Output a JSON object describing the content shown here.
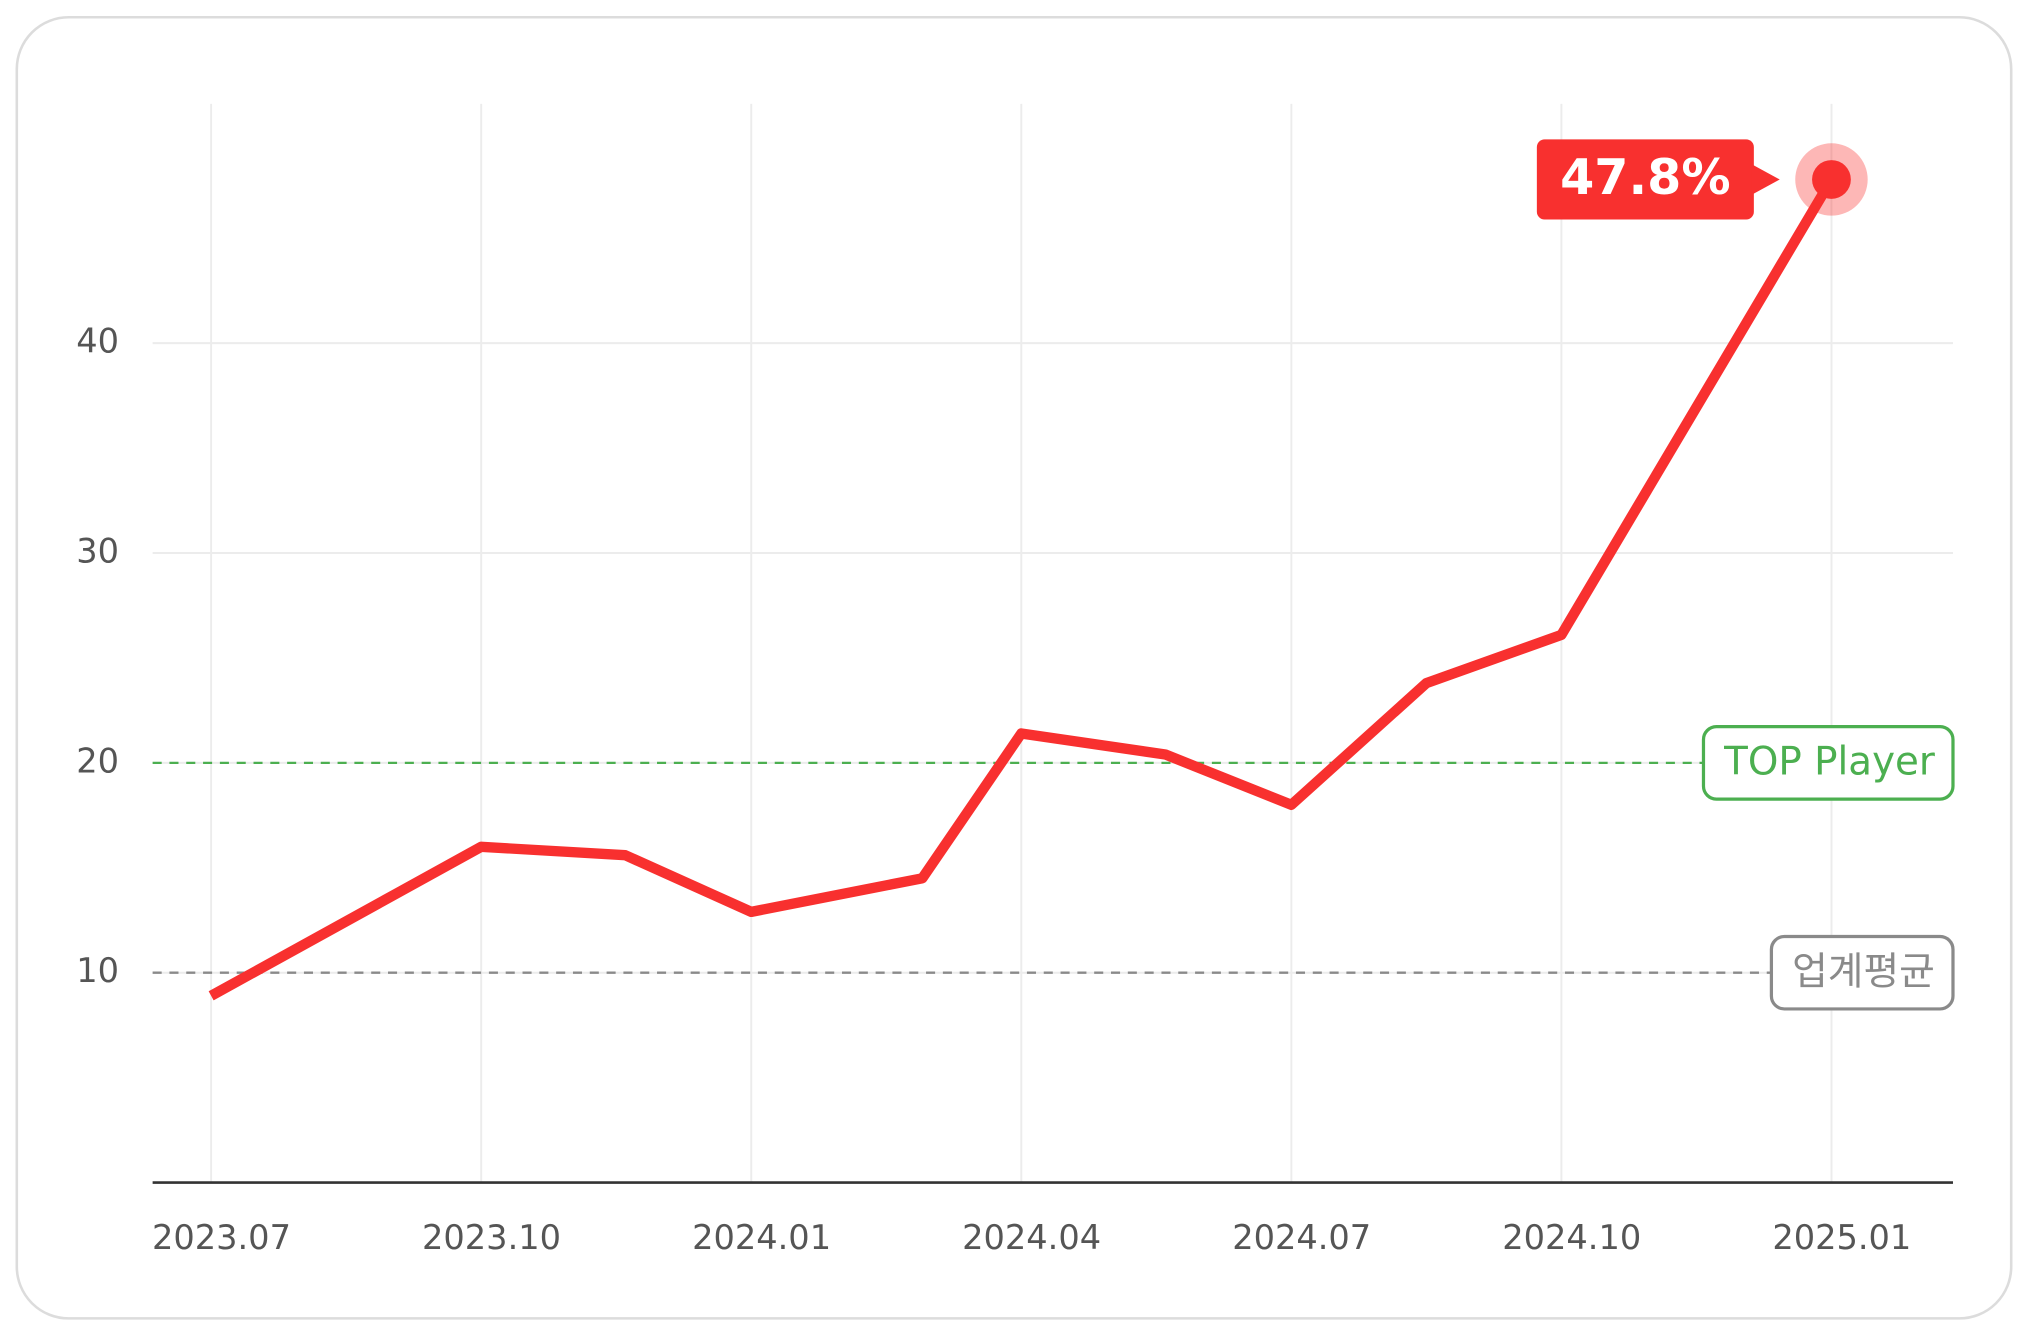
{
  "chart_data": {
    "type": "line",
    "x": [
      0,
      3,
      4.6,
      6,
      7.9,
      9,
      10.6,
      12,
      13.5,
      15,
      18
    ],
    "series": [
      {
        "color": "#f8302f",
        "values": [
          8.9,
          16.0,
          15.6,
          12.9,
          14.5,
          21.4,
          20.4,
          18.0,
          23.8,
          26.1,
          47.8
        ],
        "value_labels": [
          null,
          null,
          null,
          null,
          null,
          null,
          null,
          null,
          null,
          null,
          "47.8%"
        ]
      }
    ],
    "xlim": [
      -0.65,
      19.35
    ],
    "xticks": [
      {
        "value": 0,
        "label": "2023.07"
      },
      {
        "value": 3,
        "label": "2023.10"
      },
      {
        "value": 6,
        "label": "2024.01"
      },
      {
        "value": 9,
        "label": "2024.04"
      },
      {
        "value": 12,
        "label": "2024.07"
      },
      {
        "value": 15,
        "label": "2024.10"
      },
      {
        "value": 18,
        "label": "2025.01"
      }
    ],
    "ylim": [
      0,
      51.4
    ],
    "yticks": [
      10,
      20,
      30,
      40
    ],
    "grid": true,
    "reference_lines": [
      {
        "value": 20,
        "label": "TOP Player",
        "color": "#4caf50"
      },
      {
        "value": 10,
        "label": "업계평균",
        "color": "#8a8a8a"
      }
    ]
  }
}
